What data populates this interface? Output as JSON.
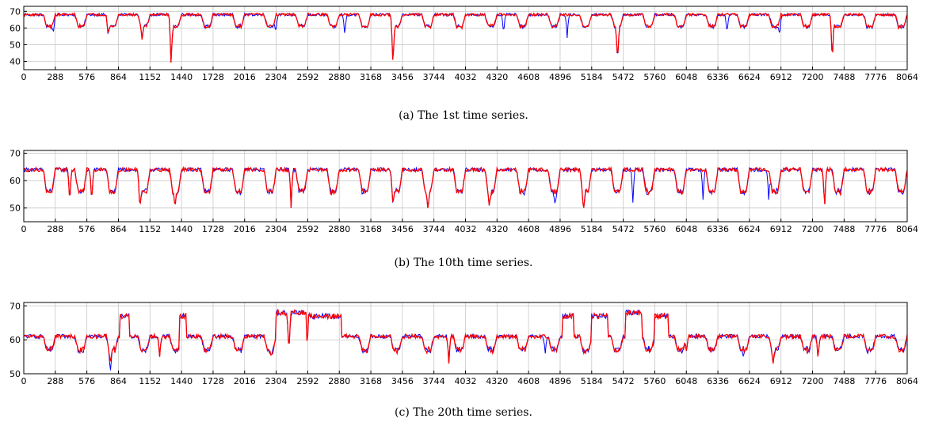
{
  "chart_data": [
    {
      "type": "line",
      "caption": "(a) The 1st time series.",
      "xlim": [
        0,
        8064
      ],
      "ylim": [
        35,
        73
      ],
      "xticks": [
        0,
        288,
        576,
        864,
        1152,
        1440,
        1728,
        2016,
        2304,
        2592,
        2880,
        3168,
        3456,
        3744,
        4032,
        4320,
        4608,
        4896,
        5184,
        5472,
        5760,
        6048,
        6336,
        6624,
        6912,
        7200,
        7488,
        7776,
        8064
      ],
      "yticks": [
        40,
        50,
        60,
        70
      ],
      "grid": true,
      "series": [
        {
          "color": "#0000ff",
          "base": 68,
          "low": 61,
          "noise": 0.8,
          "dips": [
            [
              270,
              57
            ],
            [
              770,
              55
            ],
            [
              1080,
              54
            ],
            [
              1345,
              37
            ],
            [
              2300,
              56
            ],
            [
              2930,
              55
            ],
            [
              3370,
              37
            ],
            [
              4380,
              56
            ],
            [
              4960,
              54
            ],
            [
              5420,
              38
            ],
            [
              6420,
              56
            ],
            [
              6900,
              55
            ],
            [
              7380,
              38
            ]
          ]
        },
        {
          "color": "#ff0000",
          "base": 68,
          "low": 61,
          "noise": 0.8,
          "dips": [
            [
              770,
              56
            ],
            [
              1080,
              53
            ],
            [
              1345,
              37
            ],
            [
              3370,
              37
            ],
            [
              5420,
              39
            ],
            [
              7380,
              37
            ]
          ]
        }
      ]
    },
    {
      "type": "line",
      "caption": "(b) The 10th time series.",
      "xlim": [
        0,
        8064
      ],
      "ylim": [
        45,
        71
      ],
      "xticks": [
        0,
        288,
        576,
        864,
        1152,
        1440,
        1728,
        2016,
        2304,
        2592,
        2880,
        3168,
        3456,
        3744,
        4032,
        4320,
        4608,
        4896,
        5184,
        5472,
        5760,
        6048,
        6336,
        6624,
        6912,
        7200,
        7488,
        7776,
        8064
      ],
      "yticks": [
        50,
        60,
        70
      ],
      "grid": true,
      "series": [
        {
          "color": "#0000ff",
          "base": 64,
          "low": 56,
          "noise": 0.7,
          "dips": [
            [
              420,
              51
            ],
            [
              620,
              51
            ],
            [
              1060,
              49
            ],
            [
              1380,
              50
            ],
            [
              2440,
              50
            ],
            [
              3370,
              51
            ],
            [
              3690,
              49
            ],
            [
              4250,
              50
            ],
            [
              4850,
              51
            ],
            [
              5110,
              49
            ],
            [
              5560,
              52
            ],
            [
              6200,
              53
            ],
            [
              6800,
              53
            ],
            [
              7310,
              49
            ]
          ]
        },
        {
          "color": "#ff0000",
          "base": 64,
          "low": 56,
          "noise": 0.7,
          "dips": [
            [
              420,
              51
            ],
            [
              620,
              51
            ],
            [
              1060,
              49
            ],
            [
              1380,
              50
            ],
            [
              2440,
              50
            ],
            [
              3370,
              51
            ],
            [
              3690,
              49
            ],
            [
              4250,
              50
            ],
            [
              5110,
              49
            ],
            [
              7310,
              49
            ]
          ]
        }
      ]
    },
    {
      "type": "line",
      "caption": "(c) The 20th time series.",
      "xlim": [
        0,
        8064
      ],
      "ylim": [
        50,
        71
      ],
      "xticks": [
        0,
        288,
        576,
        864,
        1152,
        1440,
        1728,
        2016,
        2304,
        2592,
        2880,
        3168,
        3456,
        3744,
        4032,
        4320,
        4608,
        4896,
        5184,
        5472,
        5760,
        6048,
        6336,
        6624,
        6912,
        7200,
        7488,
        7776,
        8064
      ],
      "yticks": [
        50,
        60,
        70
      ],
      "grid": true,
      "series": [
        {
          "color": "#0000ff",
          "base": 61,
          "low": 57,
          "noise": 0.6,
          "dips": [
            [
              790,
              50
            ],
            [
              1240,
              55
            ],
            [
              2260,
              55
            ],
            [
              2420,
              55
            ],
            [
              3880,
              53
            ],
            [
              4760,
              56
            ],
            [
              6050,
              56
            ],
            [
              6570,
              55
            ],
            [
              6840,
              53
            ],
            [
              7250,
              54
            ]
          ],
          "bumps": [
            [
              880,
              960,
              67
            ],
            [
              1420,
              1480,
              67
            ],
            [
              2300,
              2580,
              68
            ],
            [
              2600,
              2900,
              67
            ],
            [
              4920,
              5020,
              67
            ],
            [
              5180,
              5330,
              67
            ],
            [
              5490,
              5640,
              68
            ],
            [
              5760,
              5880,
              67
            ]
          ]
        },
        {
          "color": "#ff0000",
          "base": 61,
          "low": 57,
          "noise": 0.6,
          "dips": [
            [
              790,
              53
            ],
            [
              1240,
              55
            ],
            [
              2260,
              55
            ],
            [
              2420,
              55
            ],
            [
              3880,
              53
            ],
            [
              6050,
              56
            ],
            [
              6840,
              53
            ],
            [
              7250,
              54
            ]
          ],
          "bumps": [
            [
              880,
              960,
              67
            ],
            [
              1420,
              1480,
              67
            ],
            [
              2300,
              2580,
              68
            ],
            [
              2600,
              2900,
              67
            ],
            [
              4920,
              5020,
              67
            ],
            [
              5180,
              5330,
              67
            ],
            [
              5490,
              5640,
              68
            ],
            [
              5760,
              5880,
              67
            ]
          ]
        }
      ]
    }
  ]
}
